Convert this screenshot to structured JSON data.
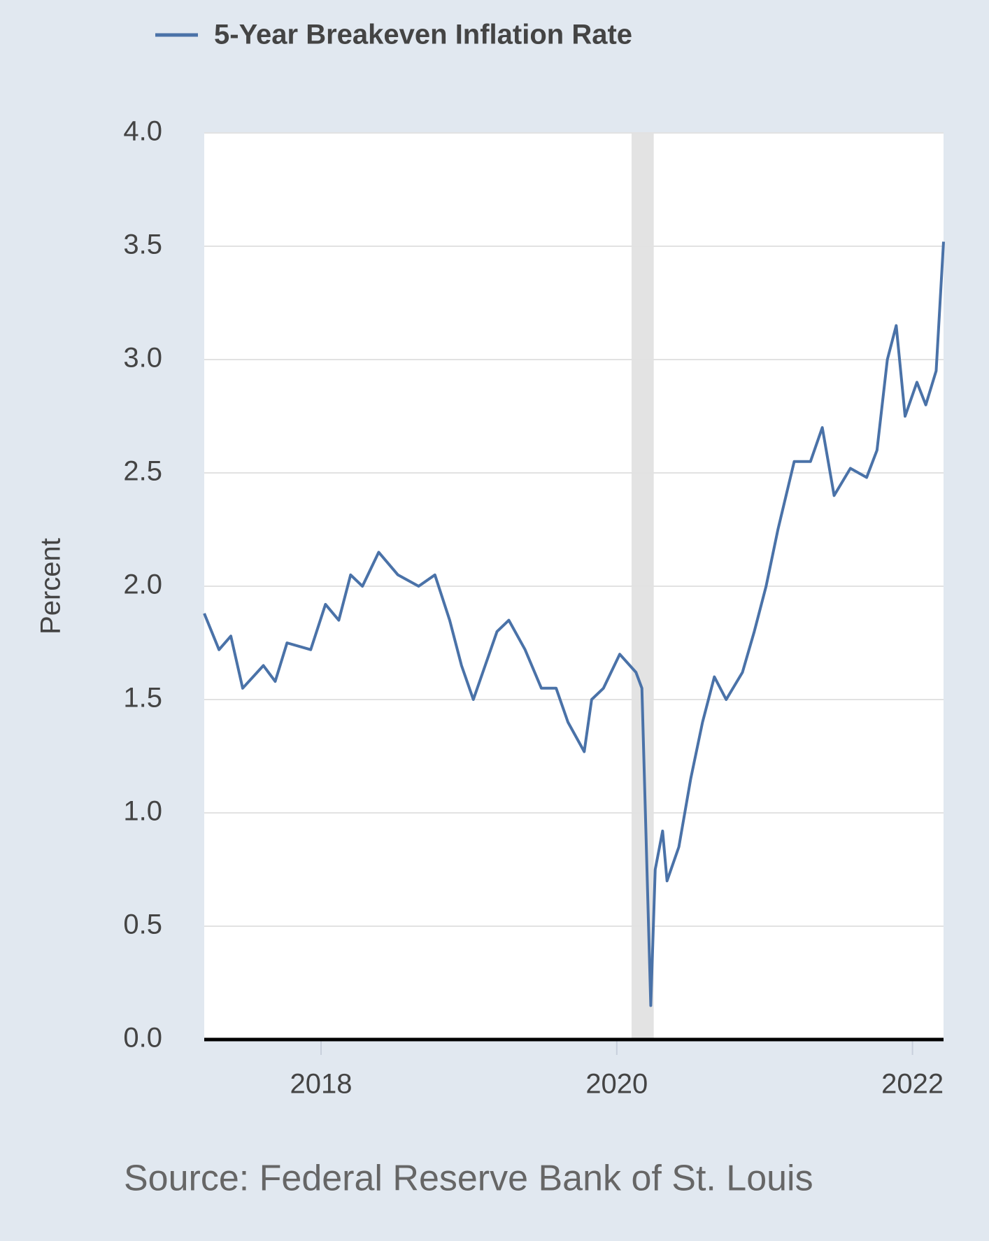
{
  "chart_data": {
    "type": "line",
    "series": [
      {
        "name": "5-Year Breakeven Inflation Rate",
        "color": "#4a72a8",
        "x": [
          2017.21,
          2017.31,
          2017.39,
          2017.47,
          2017.61,
          2017.69,
          2017.77,
          2017.93,
          2018.03,
          2018.12,
          2018.2,
          2018.28,
          2018.39,
          2018.52,
          2018.66,
          2018.77,
          2018.87,
          2018.95,
          2019.03,
          2019.11,
          2019.19,
          2019.27,
          2019.38,
          2019.49,
          2019.59,
          2019.67,
          2019.78,
          2019.83,
          2019.91,
          2020.02,
          2020.13,
          2020.17,
          2020.23,
          2020.26,
          2020.31,
          2020.34,
          2020.42,
          2020.5,
          2020.58,
          2020.66,
          2020.74,
          2020.85,
          2020.93,
          2021.01,
          2021.09,
          2021.2,
          2021.31,
          2021.39,
          2021.47,
          2021.58,
          2021.69,
          2021.76,
          2021.83,
          2021.89,
          2021.95,
          2022.03,
          2022.09,
          2022.16,
          2022.21
        ],
        "values": [
          1.88,
          1.72,
          1.78,
          1.55,
          1.65,
          1.58,
          1.75,
          1.72,
          1.92,
          1.85,
          2.05,
          2.0,
          2.15,
          2.05,
          2.0,
          2.05,
          1.85,
          1.65,
          1.5,
          1.65,
          1.8,
          1.85,
          1.72,
          1.55,
          1.55,
          1.4,
          1.27,
          1.5,
          1.55,
          1.7,
          1.62,
          1.55,
          0.15,
          0.75,
          0.92,
          0.7,
          0.85,
          1.15,
          1.4,
          1.6,
          1.5,
          1.62,
          1.8,
          2.0,
          2.25,
          2.55,
          2.55,
          2.7,
          2.4,
          2.52,
          2.48,
          2.6,
          3.0,
          3.15,
          2.75,
          2.9,
          2.8,
          2.95,
          3.52
        ]
      }
    ],
    "y_label": "Percent",
    "xlim": [
      2017.21,
      2022.21
    ],
    "xticks": [
      2018,
      2020,
      2022
    ],
    "ylim": [
      0,
      4
    ],
    "yticks": [
      {
        "value": 0,
        "label": "0.0"
      },
      0.5,
      {
        "value": 1,
        "label": "1.0"
      },
      1.5,
      {
        "value": 2,
        "label": "2.0"
      },
      2.5,
      {
        "value": 3,
        "label": "3.0"
      },
      3.5,
      {
        "value": 4,
        "label": "4.0"
      }
    ],
    "recession": [
      2020.1,
      2020.25
    ],
    "grid": true,
    "source": "Source: Federal Reserve Bank of St. Louis"
  }
}
